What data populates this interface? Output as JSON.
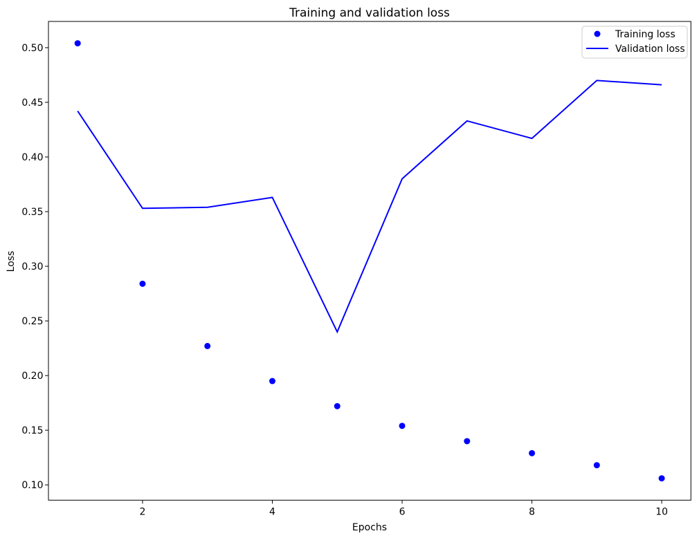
{
  "figure": {
    "title": "Training and validation loss",
    "xlabel": "Epochs",
    "ylabel": "Loss",
    "background": "#ffffff"
  },
  "legend": {
    "position": "upper right",
    "border_color": "#cccccc",
    "entries": [
      {
        "label": "Training loss",
        "marker": "dot",
        "color": "#0000ff"
      },
      {
        "label": "Validation loss",
        "marker": "line",
        "color": "#0000ff"
      }
    ]
  },
  "axes": {
    "x_tick_labels": [
      "2",
      "4",
      "6",
      "8",
      "10"
    ],
    "x_tick_values": [
      2,
      4,
      6,
      8,
      10
    ],
    "y_tick_labels": [
      "0.10",
      "0.15",
      "0.20",
      "0.25",
      "0.30",
      "0.35",
      "0.40",
      "0.45",
      "0.50"
    ],
    "y_tick_values": [
      0.1,
      0.15,
      0.2,
      0.25,
      0.3,
      0.35,
      0.4,
      0.45,
      0.5
    ]
  },
  "chart_data": {
    "type": "line",
    "title": "Training and validation loss",
    "xlabel": "Epochs",
    "ylabel": "Loss",
    "x": [
      1,
      2,
      3,
      4,
      5,
      6,
      7,
      8,
      9,
      10
    ],
    "series": [
      {
        "name": "Training loss",
        "style": "scatter",
        "color": "#0000ff",
        "values": [
          0.504,
          0.284,
          0.227,
          0.195,
          0.172,
          0.154,
          0.14,
          0.129,
          0.118,
          0.106
        ]
      },
      {
        "name": "Validation loss",
        "style": "line",
        "color": "#0000ff",
        "values": [
          0.442,
          0.353,
          0.354,
          0.363,
          0.24,
          0.38,
          0.433,
          0.417,
          0.47,
          0.466
        ]
      }
    ],
    "xlim": [
      0.55,
      10.45
    ],
    "ylim": [
      0.086,
      0.524
    ],
    "grid": false,
    "legend_position": "upper right"
  }
}
